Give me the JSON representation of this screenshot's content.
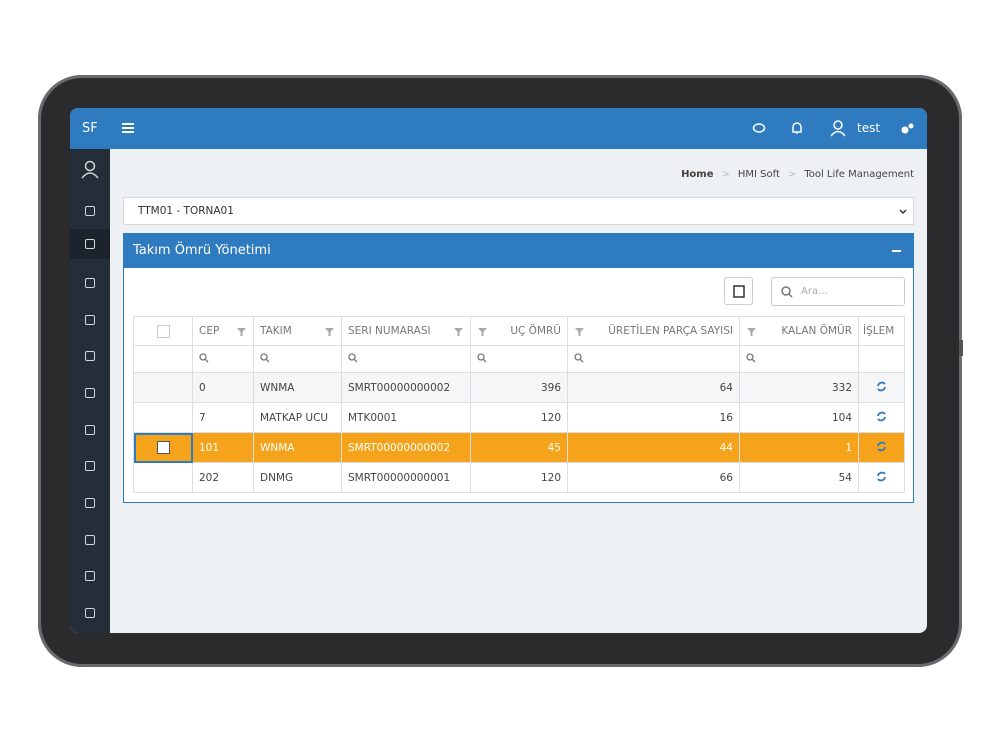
{
  "header": {
    "logo": "SF",
    "user": "test"
  },
  "breadcrumb": [
    "Home",
    "HMI Soft",
    "Tool Life Management"
  ],
  "machine_select": "TTM01 - TORNA01",
  "panel": {
    "title": "Takım Ömrü Yönetimi",
    "search_placeholder": "Ara..."
  },
  "table": {
    "columns": [
      "CEP",
      "TAKIM",
      "SERI NUMARASI",
      "UÇ ÖMRÜ",
      "ÜRETİLEN PARÇA SAYISI",
      "KALAN ÖMÜR",
      "İŞLEM"
    ],
    "rows": [
      [
        "0",
        "WNMA",
        "SMRT00000000002",
        "396",
        "64",
        "332"
      ],
      [
        "7",
        "MATKAP UCU",
        "MTK0001",
        "120",
        "16",
        "104"
      ],
      [
        "101",
        "WNMA",
        "SMRT00000000002",
        "45",
        "44",
        "1"
      ],
      [
        "202",
        "DNMG",
        "SMRT00000000001",
        "120",
        "66",
        "54"
      ]
    ]
  }
}
